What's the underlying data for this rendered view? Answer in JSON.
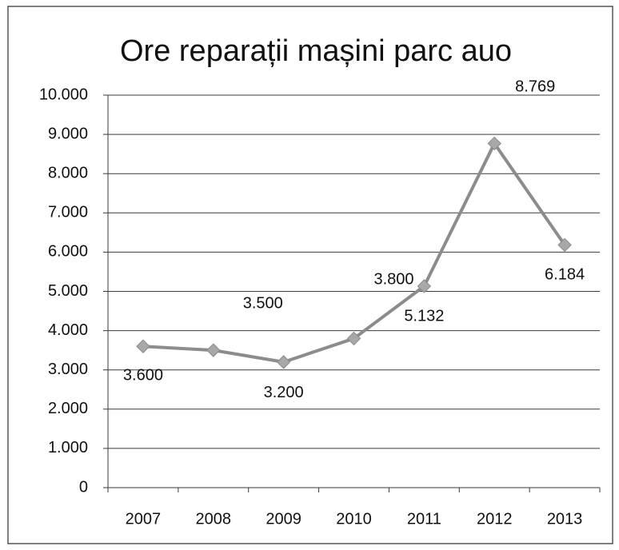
{
  "chart_data": {
    "type": "line",
    "title": "Ore reparații mașini parc auo",
    "categories": [
      "2007",
      "2008",
      "2009",
      "2010",
      "2011",
      "2012",
      "2013"
    ],
    "values": [
      3600,
      3500,
      3200,
      3800,
      5132,
      8769,
      6184
    ],
    "value_labels": [
      "3.600",
      "3.500",
      "3.200",
      "3.800",
      "5.132",
      "8.769",
      "6.184"
    ],
    "color": "#8c8c8c",
    "ylim": [
      0,
      10000
    ],
    "yticks": [
      0,
      {
        "value": 1000,
        "label": "1.000"
      },
      {
        "value": 2000,
        "label": "2.000"
      },
      {
        "value": 3000,
        "label": "3.000"
      },
      {
        "value": 4000,
        "label": "4.000"
      },
      {
        "value": 5000,
        "label": "5.000"
      },
      {
        "value": 6000,
        "label": "6.000"
      },
      {
        "value": 7000,
        "label": "7.000"
      },
      {
        "value": 8000,
        "label": "8.000"
      },
      {
        "value": 9000,
        "label": "9.000"
      },
      {
        "value": 10000,
        "label": "10.000"
      }
    ],
    "grid": true
  }
}
